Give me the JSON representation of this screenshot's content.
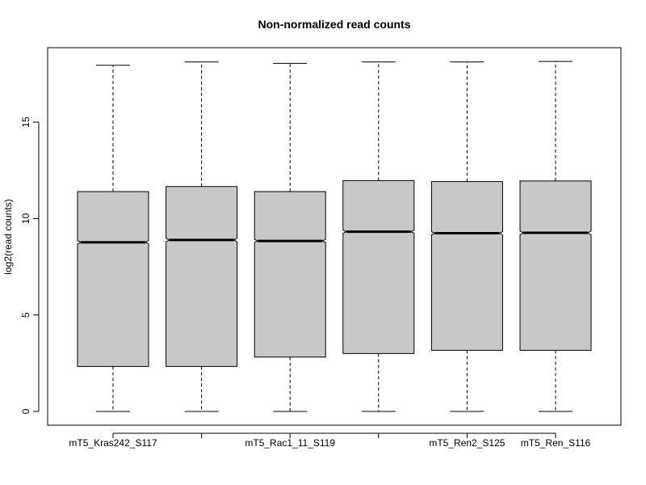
{
  "chart_data": {
    "type": "boxplot",
    "title": "Non-normalized read counts",
    "xlabel": "",
    "ylabel": "log2(read counts)",
    "ylim": [
      -0.7,
      18.6
    ],
    "yticks": [
      0,
      5,
      10,
      15
    ],
    "notched": true,
    "box_color": "#c8c8c8",
    "categories": [
      "mT5_Kras242_S117",
      "",
      "mT5_Rac1_11_S119",
      "",
      "mT5_Ren2_S125",
      "mT5_Ren_S116"
    ],
    "boxes": [
      {
        "min": 0.0,
        "q1": 2.33,
        "median": 8.77,
        "q3": 11.4,
        "max": 17.95,
        "notch_low": 8.68,
        "notch_high": 8.86
      },
      {
        "min": 0.0,
        "q1": 2.33,
        "median": 8.89,
        "q3": 11.66,
        "max": 18.12,
        "notch_low": 8.8,
        "notch_high": 8.98
      },
      {
        "min": 0.0,
        "q1": 2.82,
        "median": 8.84,
        "q3": 11.4,
        "max": 18.05,
        "notch_low": 8.76,
        "notch_high": 8.92
      },
      {
        "min": 0.0,
        "q1": 3.0,
        "median": 9.32,
        "q3": 11.97,
        "max": 18.12,
        "notch_low": 9.24,
        "notch_high": 9.4
      },
      {
        "min": 0.0,
        "q1": 3.17,
        "median": 9.24,
        "q3": 11.92,
        "max": 18.12,
        "notch_low": 9.16,
        "notch_high": 9.32
      },
      {
        "min": 0.0,
        "q1": 3.17,
        "median": 9.26,
        "q3": 11.95,
        "max": 18.15,
        "notch_low": 9.16,
        "notch_high": 9.36
      }
    ]
  }
}
